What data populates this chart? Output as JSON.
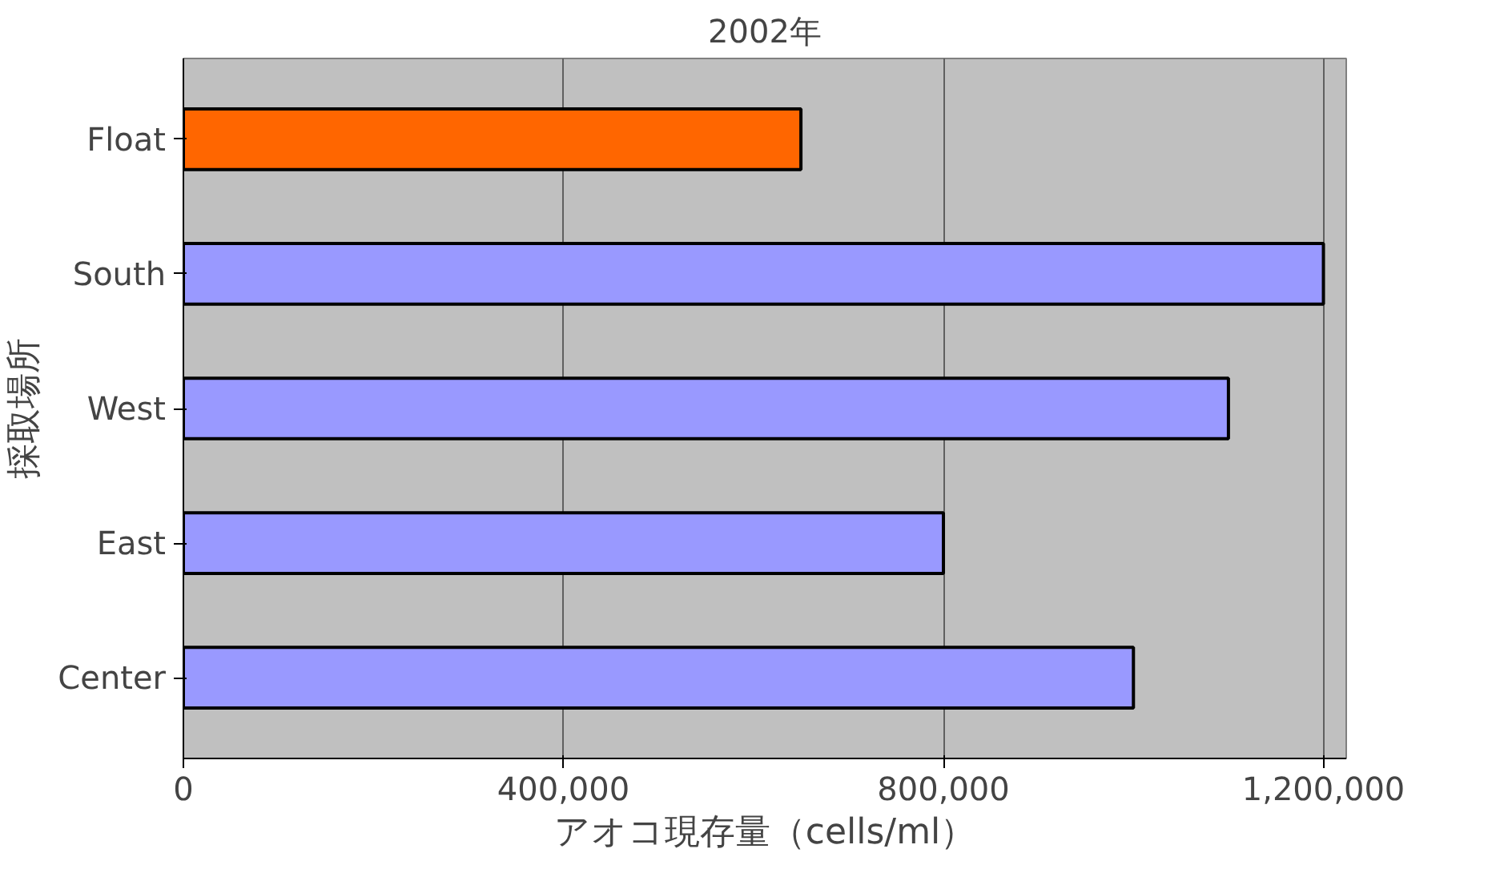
{
  "chart_data": {
    "type": "bar",
    "orientation": "horizontal",
    "title": "2002年",
    "xlabel": "アオコ現存量（cells/ml）",
    "ylabel": "採取場所",
    "categories": [
      "Float",
      "South",
      "West",
      "East",
      "Center"
    ],
    "values": [
      650000,
      1200000,
      1100000,
      800000,
      1000000
    ],
    "colors": [
      "#ff6600",
      "#9999ff",
      "#9999ff",
      "#9999ff",
      "#9999ff"
    ],
    "xlim": [
      0,
      1200000
    ],
    "xticks": [
      0,
      {
        "value": 400000,
        "label": "400,000"
      },
      {
        "value": 800000,
        "label": "800,000"
      },
      {
        "value": 1200000,
        "label": "1,200,000"
      }
    ],
    "grid": "x"
  }
}
